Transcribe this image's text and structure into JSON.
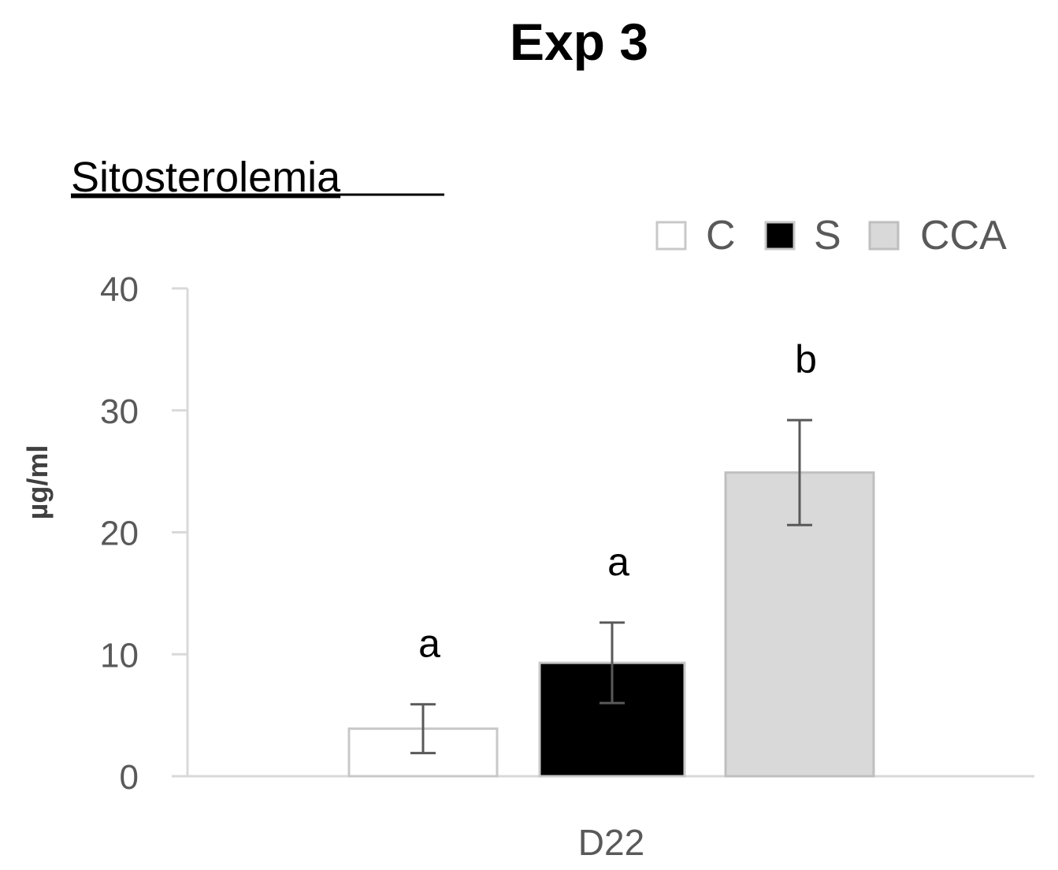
{
  "chart_data": {
    "type": "bar",
    "title": "Exp 3",
    "subtitle": "Sitosterolemia",
    "xlabel": "",
    "ylabel": "µg/ml",
    "ylim": [
      0,
      40
    ],
    "yticks": [
      0,
      10,
      20,
      30,
      40
    ],
    "categories": [
      "D22"
    ],
    "legend_position": "top-right",
    "grid": false,
    "series": [
      {
        "name": "C",
        "values": [
          3.9
        ],
        "error": [
          2.0
        ],
        "significance": "a",
        "fill": "#ffffff",
        "stroke": "#c8c8c8"
      },
      {
        "name": "S",
        "values": [
          9.3
        ],
        "error": [
          3.3
        ],
        "significance": "a",
        "fill": "#000000",
        "stroke": "#c8c8c8"
      },
      {
        "name": "CCA",
        "values": [
          24.9
        ],
        "error": [
          4.3
        ],
        "significance": "b",
        "fill": "#d9d9d9",
        "stroke": "#bfbfbf"
      }
    ],
    "colors": {
      "axis": "#d9d9d9",
      "error_bar": "#595959",
      "tick_text": "#595959"
    }
  }
}
